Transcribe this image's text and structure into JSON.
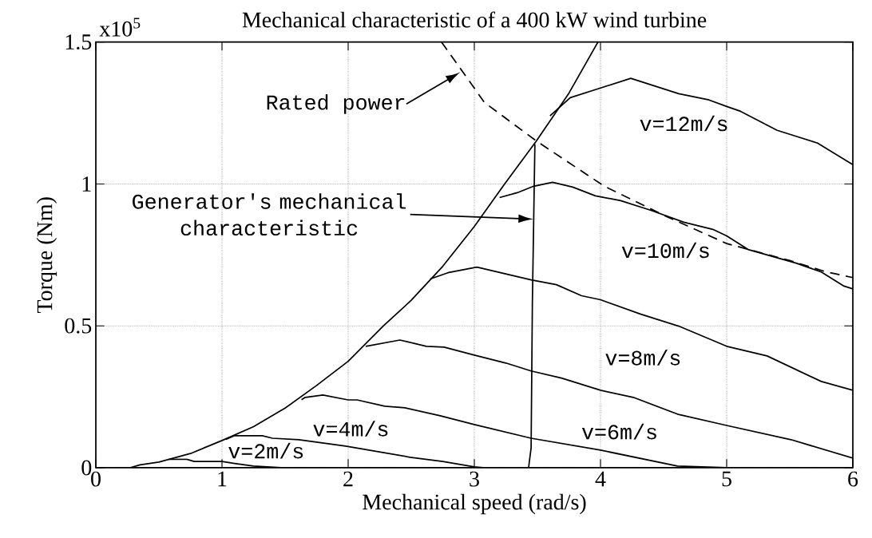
{
  "chart_data": {
    "type": "line",
    "title": "Mechanical characteristic of a 400 kW wind turbine",
    "xlabel": "Mechanical speed (rad/s)",
    "ylabel": "Torque (Nm)",
    "xlim": [
      0,
      6
    ],
    "ylim": [
      0,
      1.5
    ],
    "xticks": [
      0,
      1,
      2,
      3,
      4,
      5,
      6
    ],
    "yticks": [
      0,
      0.5,
      1,
      1.5
    ],
    "grid": true,
    "series": [
      {
        "color": "#000000",
        "x": [
          0.27,
          0.35,
          0.5,
          0.75,
          1.0,
          1.25,
          1.5,
          1.75,
          2.0,
          2.28,
          2.5,
          2.75,
          3.0,
          3.24,
          3.49,
          3.75,
          3.98
        ],
        "values": [
          0,
          0.01,
          0.02,
          0.05,
          0.096,
          0.145,
          0.21,
          0.29,
          0.375,
          0.5,
          0.59,
          0.71,
          0.85,
          1.0,
          1.15,
          1.32,
          1.5
        ]
      },
      {
        "color": "#000000",
        "x": [
          3.43,
          3.45,
          3.46,
          3.48
        ],
        "values": [
          0,
          0.07,
          0.58,
          1.14
        ]
      },
      {
        "color": "#000000",
        "line_style": "dashed",
        "x": [
          2.74,
          2.98,
          3.08,
          3.18,
          3.49,
          4.03,
          4.5,
          5.0,
          5.5,
          5.79,
          6.0
        ],
        "values": [
          1.5,
          1.35,
          1.287,
          1.254,
          1.152,
          0.992,
          0.89,
          0.79,
          0.73,
          0.69,
          0.67
        ]
      },
      {
        "color": "#000000",
        "x": [
          0.58,
          0.72,
          0.78,
          1.0,
          1.1,
          1.25,
          1.47,
          1.75
        ],
        "values": [
          0.03,
          0.03,
          0.022,
          0.022,
          0.015,
          0.006,
          0,
          0
        ]
      },
      {
        "color": "#000000",
        "x": [
          1.03,
          1.1,
          1.32,
          1.4,
          1.61,
          1.98,
          2.49,
          2.75,
          3.0,
          3.07,
          3.45
        ],
        "values": [
          0.1,
          0.113,
          0.113,
          0.104,
          0.099,
          0.076,
          0.037,
          0.022,
          0.003,
          0,
          0
        ]
      },
      {
        "color": "#000000",
        "x": [
          1.63,
          1.66,
          1.8,
          2.0,
          2.07,
          2.29,
          2.45,
          2.73,
          3.0,
          3.45,
          4.0,
          4.61,
          5.0,
          5.2
        ],
        "values": [
          0.24,
          0.248,
          0.256,
          0.239,
          0.239,
          0.217,
          0.211,
          0.183,
          0.152,
          0.104,
          0.062,
          0.006,
          0,
          0
        ]
      },
      {
        "color": "#000000",
        "x": [
          2.14,
          2.41,
          2.62,
          2.76,
          3.0,
          3.25,
          3.45,
          3.69,
          4.0,
          4.26,
          4.61,
          5.0,
          5.51,
          6.0
        ],
        "values": [
          0.428,
          0.45,
          0.428,
          0.425,
          0.397,
          0.369,
          0.341,
          0.316,
          0.273,
          0.248,
          0.189,
          0.149,
          0.099,
          0.034
        ]
      },
      {
        "color": "#000000",
        "x": [
          2.65,
          2.79,
          3.02,
          3.45,
          3.65,
          3.85,
          4.0,
          4.32,
          4.62,
          5.0,
          5.32,
          5.75,
          6.0
        ],
        "values": [
          0.665,
          0.687,
          0.707,
          0.662,
          0.645,
          0.606,
          0.592,
          0.541,
          0.499,
          0.428,
          0.394,
          0.304,
          0.273
        ]
      },
      {
        "color": "#000000",
        "x": [
          3.2,
          3.34,
          3.47,
          3.62,
          3.78,
          3.96,
          4.16,
          4.4,
          4.66,
          4.89,
          5.0,
          5.17,
          5.55,
          5.75,
          5.93,
          6.0
        ],
        "values": [
          0.952,
          0.969,
          0.992,
          1.006,
          0.989,
          0.958,
          0.941,
          0.907,
          0.865,
          0.84,
          0.817,
          0.769,
          0.721,
          0.69,
          0.64,
          0.63
        ]
      },
      {
        "color": "#000000",
        "x": [
          3.6,
          3.76,
          4.0,
          4.24,
          4.62,
          4.86,
          5.0,
          5.11,
          5.4,
          5.72,
          6.0
        ],
        "values": [
          1.24,
          1.304,
          1.338,
          1.372,
          1.318,
          1.296,
          1.273,
          1.256,
          1.189,
          1.144,
          1.068
        ]
      }
    ],
    "annotations": [
      "x10$^{5}$",
      "v=12m/s",
      "v=10m/s",
      "v=8m/s",
      "v=6m/s",
      "v=4m/s",
      "v=2m/s",
      {
        "text": "Rated power",
        "x": 2.89,
        "y": 1.394
      },
      "Generator's mechanical characteristic"
    ]
  }
}
